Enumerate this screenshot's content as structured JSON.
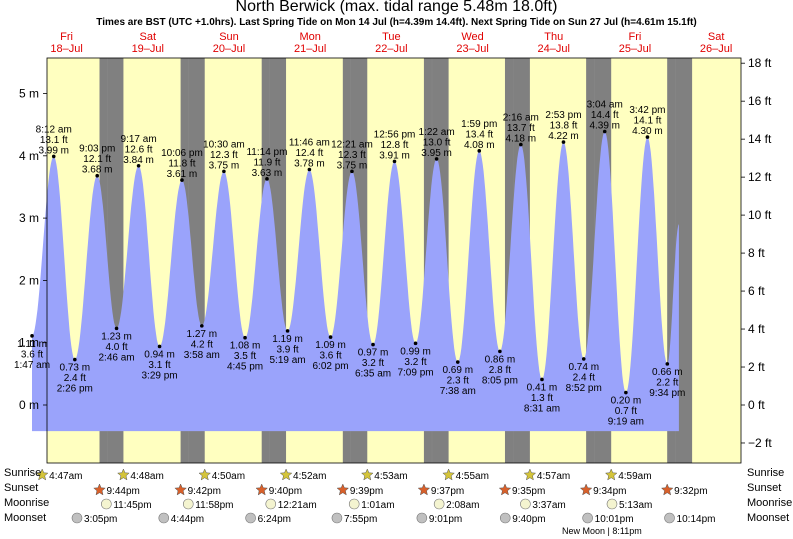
{
  "title": "North Berwick (max. tidal range 5.48m 18.0ft)",
  "subtitle": "Times are BST (UTC +1.0hrs). Last Spring Tide on Mon 14 Jul (h=4.39m 14.4ft). Next Spring Tide on Sun 27 Jul (h=4.61m 15.1ft)",
  "colors": {
    "day": "#ffffc0",
    "night": "#808080",
    "tide": "#9aa3fb",
    "date_label": "#e00000",
    "sunrise": "#d4c43a",
    "sunset": "#d9602a",
    "moon_fill": "#f4f4d0",
    "moon_bg": "#c0c0c0"
  },
  "row_labels": {
    "sunrise": "Sunrise",
    "sunset": "Sunset",
    "moonrise": "Moonrise",
    "moonset": "Moonset"
  },
  "new_moon": "New Moon | 8:11pm",
  "chart_data": {
    "type": "area",
    "x_unit": "hours from Fri 18 Jul 00:00",
    "ylim_m": [
      -0.75,
      5.6
    ],
    "left_axis": {
      "unit": "m",
      "ticks": [
        0,
        1,
        2,
        3,
        4,
        5
      ],
      "labels": [
        "0 m",
        "1 m",
        "2 m",
        "3 m",
        "4 m",
        "5 m"
      ]
    },
    "right_axis": {
      "unit": "ft",
      "ticks": [
        -2,
        0,
        2,
        4,
        6,
        8,
        10,
        12,
        14,
        16,
        18
      ],
      "labels": [
        "−2 ft",
        "0 ft",
        "2 ft",
        "4 ft",
        "6 ft",
        "8 ft",
        "10 ft",
        "12 ft",
        "14 ft",
        "16 ft",
        "18 ft"
      ]
    },
    "days": [
      {
        "day": "Fri",
        "date": "18–Jul"
      },
      {
        "day": "Sat",
        "date": "19–Jul"
      },
      {
        "day": "Sun",
        "date": "20–Jul"
      },
      {
        "day": "Mon",
        "date": "21–Jul"
      },
      {
        "day": "Tue",
        "date": "22–Jul"
      },
      {
        "day": "Wed",
        "date": "23–Jul"
      },
      {
        "day": "Thu",
        "date": "24–Jul"
      },
      {
        "day": "Fri",
        "date": "25–Jul"
      },
      {
        "day": "Sat",
        "date": "26–Jul"
      }
    ],
    "tides": [
      {
        "type": "low",
        "time": "1:47 am",
        "m": "1.11 m",
        "ft": "3.6 ft",
        "h": 1.78,
        "height": 1.11
      },
      {
        "type": "high",
        "time": "8:12 am",
        "m": "3.99 m",
        "ft": "13.1 ft",
        "h": 8.2,
        "height": 3.99
      },
      {
        "type": "low",
        "time": "2:26 pm",
        "m": "0.73 m",
        "ft": "2.4 ft",
        "h": 14.43,
        "height": 0.73
      },
      {
        "type": "high",
        "time": "9:03 pm",
        "m": "3.68 m",
        "ft": "12.1 ft",
        "h": 21.05,
        "height": 3.68
      },
      {
        "type": "low",
        "time": "2:46 am",
        "m": "1.23 m",
        "ft": "4.0 ft",
        "h": 26.77,
        "height": 1.23
      },
      {
        "type": "high",
        "time": "9:17 am",
        "m": "3.84 m",
        "ft": "12.6 ft",
        "h": 33.28,
        "height": 3.84
      },
      {
        "type": "low",
        "time": "3:29 pm",
        "m": "0.94 m",
        "ft": "3.1 ft",
        "h": 39.48,
        "height": 0.94
      },
      {
        "type": "high",
        "time": "10:06 pm",
        "m": "3.61 m",
        "ft": "11.8 ft",
        "h": 46.1,
        "height": 3.61
      },
      {
        "type": "low",
        "time": "3:58 am",
        "m": "1.27 m",
        "ft": "4.2 ft",
        "h": 51.97,
        "height": 1.27
      },
      {
        "type": "high",
        "time": "10:30 am",
        "m": "3.75 m",
        "ft": "12.3 ft",
        "h": 58.5,
        "height": 3.75
      },
      {
        "type": "low",
        "time": "4:45 pm",
        "m": "1.08 m",
        "ft": "3.5 ft",
        "h": 64.75,
        "height": 1.08
      },
      {
        "type": "high",
        "time": "11:14 pm",
        "m": "3.63 m",
        "ft": "11.9 ft",
        "h": 71.23,
        "height": 3.63
      },
      {
        "type": "low",
        "time": "5:19 am",
        "m": "1.19 m",
        "ft": "3.9 ft",
        "h": 77.32,
        "height": 1.19
      },
      {
        "type": "high",
        "time": "11:46 am",
        "m": "3.78 m",
        "ft": "12.4 ft",
        "h": 83.77,
        "height": 3.78
      },
      {
        "type": "low",
        "time": "6:02 pm",
        "m": "1.09 m",
        "ft": "3.6 ft",
        "h": 90.03,
        "height": 1.09
      },
      {
        "type": "high",
        "time": "12:21 am",
        "m": "3.75 m",
        "ft": "12.3 ft",
        "h": 96.35,
        "height": 3.75
      },
      {
        "type": "low",
        "time": "6:35 am",
        "m": "0.97 m",
        "ft": "3.2 ft",
        "h": 102.58,
        "height": 0.97
      },
      {
        "type": "high",
        "time": "12:56 pm",
        "m": "3.91 m",
        "ft": "12.8 ft",
        "h": 108.93,
        "height": 3.91
      },
      {
        "type": "low",
        "time": "7:09 pm",
        "m": "0.99 m",
        "ft": "3.2 ft",
        "h": 115.15,
        "height": 0.99
      },
      {
        "type": "high",
        "time": "1:22 am",
        "m": "3.95 m",
        "ft": "13.0 ft",
        "h": 121.37,
        "height": 3.95
      },
      {
        "type": "low",
        "time": "7:38 am",
        "m": "0.69 m",
        "ft": "2.3 ft",
        "h": 127.63,
        "height": 0.69
      },
      {
        "type": "high",
        "time": "1:59 pm",
        "m": "4.08 m",
        "ft": "13.4 ft",
        "h": 133.98,
        "height": 4.08
      },
      {
        "type": "low",
        "time": "8:05 pm",
        "m": "0.86 m",
        "ft": "2.8 ft",
        "h": 140.08,
        "height": 0.86
      },
      {
        "type": "high",
        "time": "2:16 am",
        "m": "4.18 m",
        "ft": "13.7 ft",
        "h": 146.27,
        "height": 4.18
      },
      {
        "type": "low",
        "time": "8:31 am",
        "m": "0.41 m",
        "ft": "1.3 ft",
        "h": 152.52,
        "height": 0.41
      },
      {
        "type": "high",
        "time": "2:53 pm",
        "m": "4.22 m",
        "ft": "13.8 ft",
        "h": 158.88,
        "height": 4.22
      },
      {
        "type": "low",
        "time": "8:52 pm",
        "m": "0.74 m",
        "ft": "2.4 ft",
        "h": 164.87,
        "height": 0.74
      },
      {
        "type": "high",
        "time": "3:04 am",
        "m": "4.39 m",
        "ft": "14.4 ft",
        "h": 171.07,
        "height": 4.39
      },
      {
        "type": "low",
        "time": "9:19 am",
        "m": "0.20 m",
        "ft": "0.7 ft",
        "h": 177.32,
        "height": 0.2
      },
      {
        "type": "high",
        "time": "3:42 pm",
        "m": "4.30 m",
        "ft": "14.1 ft",
        "h": 183.7,
        "height": 4.3
      },
      {
        "type": "low",
        "time": "9:34 pm",
        "m": "0.66 m",
        "ft": "2.2 ft",
        "h": 189.57,
        "height": 0.66
      }
    ],
    "curve_end": {
      "h": 193.0,
      "height": 2.9
    },
    "sun": [
      {
        "h_rise": 4.78,
        "rise": "4:47am",
        "h_set": 21.73,
        "set": "9:44pm"
      },
      {
        "h_rise": 28.8,
        "rise": "4:48am",
        "h_set": 45.7,
        "set": "9:42pm"
      },
      {
        "h_rise": 52.83,
        "rise": "4:50am",
        "h_set": 69.67,
        "set": "9:40pm"
      },
      {
        "h_rise": 76.87,
        "rise": "4:52am",
        "h_set": 93.65,
        "set": "9:39pm"
      },
      {
        "h_rise": 100.88,
        "rise": "4:53am",
        "h_set": 117.62,
        "set": "9:37pm"
      },
      {
        "h_rise": 124.92,
        "rise": "4:55am",
        "h_set": 141.58,
        "set": "9:35pm"
      },
      {
        "h_rise": 148.95,
        "rise": "4:57am",
        "h_set": 165.57,
        "set": "9:34pm"
      },
      {
        "h_rise": 172.98,
        "rise": "4:59am",
        "h_set": 189.53,
        "set": "9:32pm"
      }
    ],
    "moonrise": [
      {
        "h": 23.75,
        "label": "11:45pm"
      },
      {
        "h": 47.97,
        "label": "11:58pm"
      },
      {
        "h": 72.35,
        "label": "12:21am"
      },
      {
        "h": 97.02,
        "label": "1:01am"
      },
      {
        "h": 122.13,
        "label": "2:08am"
      },
      {
        "h": 147.62,
        "label": "3:37am"
      },
      {
        "h": 173.22,
        "label": "5:13am"
      }
    ],
    "moonset": [
      {
        "h": 15.08,
        "label": "3:05pm"
      },
      {
        "h": 40.73,
        "label": "4:44pm"
      },
      {
        "h": 66.4,
        "label": "6:24pm"
      },
      {
        "h": 91.92,
        "label": "7:55pm"
      },
      {
        "h": 117.02,
        "label": "9:01pm"
      },
      {
        "h": 141.67,
        "label": "9:40pm"
      },
      {
        "h": 166.02,
        "label": "10:01pm"
      },
      {
        "h": 190.23,
        "label": "10:14pm"
      }
    ]
  }
}
